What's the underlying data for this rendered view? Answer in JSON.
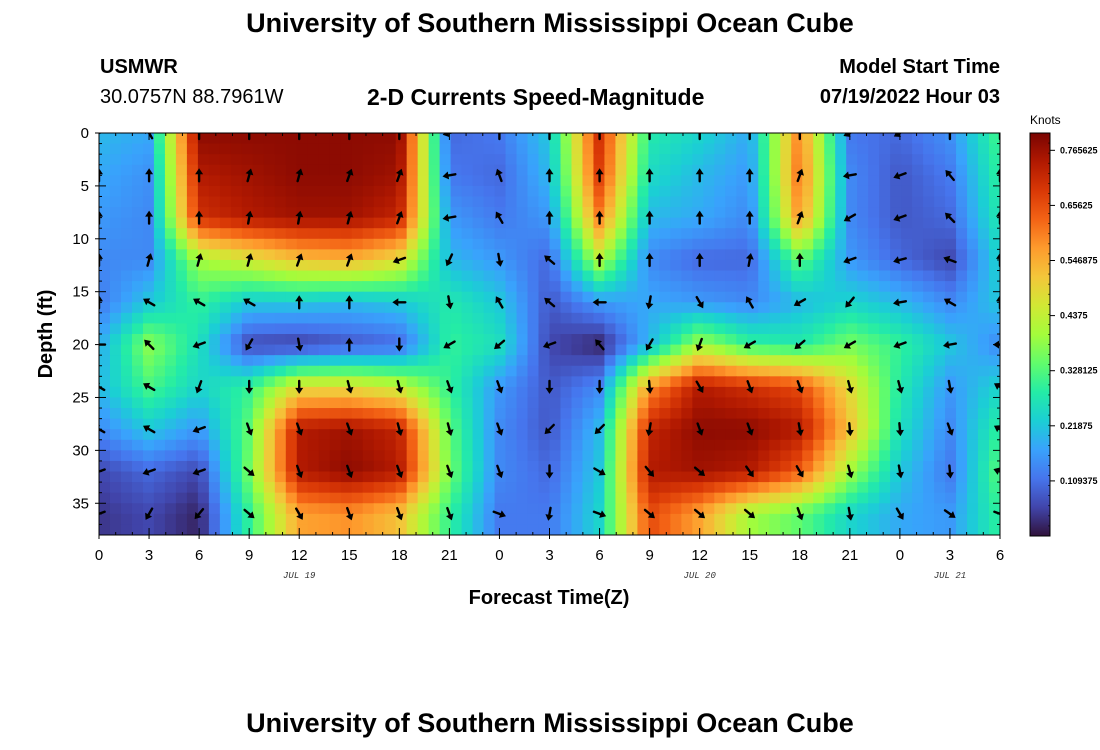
{
  "header": {
    "title": "University of Southern Mississippi Ocean Cube",
    "station": "USMWR",
    "coordinates": "30.0757N  88.7961W",
    "subtitle": "2-D Currents Speed-Magnitude",
    "model_start_label": "Model Start Time",
    "model_start_value": "07/19/2022 Hour 03"
  },
  "footer": {
    "title": "University of Southern Mississippi Ocean Cube"
  },
  "chart_data": {
    "type": "heatmap",
    "xlabel": "Forecast Time(Z)",
    "ylabel": "Depth (ft)",
    "x_tick_labels": [
      "0",
      "3",
      "6",
      "9",
      "12",
      "15",
      "18",
      "21",
      "0",
      "3",
      "6",
      "9",
      "12",
      "15",
      "18",
      "21",
      "0",
      "3",
      "6"
    ],
    "x_range_hours": [
      0,
      54
    ],
    "date_labels": [
      {
        "text": "JUL 19",
        "hour": 12
      },
      {
        "text": "JUL 20",
        "hour": 36
      },
      {
        "text": "JUL 21",
        "hour": 51
      }
    ],
    "y_ticks": [
      0,
      5,
      10,
      15,
      20,
      25,
      30,
      35
    ],
    "y_range": [
      0,
      38
    ],
    "colorbar": {
      "units": "Knots",
      "min": 0,
      "max": 0.8,
      "tick_labels": [
        "0.765625",
        "0.65625",
        "0.546875",
        "0.4375",
        "0.328125",
        "0.21875",
        "0.109375"
      ],
      "tick_values": [
        0.765625,
        0.65625,
        0.546875,
        0.4375,
        0.328125,
        0.21875,
        0.109375
      ],
      "colormap": [
        "#30123b",
        "#4145ab",
        "#4675ed",
        "#39a2fc",
        "#1bcfd4",
        "#24eca6",
        "#61fc6c",
        "#a4fc3b",
        "#d1e834",
        "#f3c63a",
        "#fe9b2d",
        "#f36315",
        "#d93806",
        "#b11901",
        "#7a0402"
      ]
    },
    "speed_field": {
      "x_hours": [
        0,
        3,
        6,
        9,
        12,
        15,
        18,
        21,
        24,
        27,
        30,
        33,
        36,
        39,
        42,
        45,
        48,
        51,
        54
      ],
      "depths": [
        0,
        4,
        8,
        12,
        16,
        20,
        24,
        28,
        32,
        36
      ],
      "values": [
        [
          0.2,
          0.18,
          0.78,
          0.78,
          0.78,
          0.78,
          0.78,
          0.1,
          0.12,
          0.22,
          0.7,
          0.28,
          0.24,
          0.18,
          0.6,
          0.12,
          0.1,
          0.15,
          0.32
        ],
        [
          0.18,
          0.15,
          0.74,
          0.76,
          0.78,
          0.78,
          0.76,
          0.12,
          0.1,
          0.2,
          0.68,
          0.25,
          0.2,
          0.16,
          0.62,
          0.14,
          0.08,
          0.12,
          0.3
        ],
        [
          0.16,
          0.14,
          0.7,
          0.74,
          0.76,
          0.76,
          0.72,
          0.16,
          0.12,
          0.16,
          0.6,
          0.2,
          0.18,
          0.14,
          0.58,
          0.14,
          0.08,
          0.1,
          0.28
        ],
        [
          0.14,
          0.14,
          0.4,
          0.46,
          0.52,
          0.54,
          0.48,
          0.2,
          0.16,
          0.1,
          0.42,
          0.14,
          0.1,
          0.1,
          0.34,
          0.16,
          0.1,
          0.06,
          0.24
        ],
        [
          0.12,
          0.22,
          0.3,
          0.22,
          0.22,
          0.2,
          0.22,
          0.28,
          0.22,
          0.08,
          0.16,
          0.18,
          0.16,
          0.14,
          0.2,
          0.24,
          0.2,
          0.14,
          0.22
        ],
        [
          0.18,
          0.38,
          0.26,
          0.06,
          0.05,
          0.08,
          0.1,
          0.3,
          0.26,
          0.06,
          0.02,
          0.2,
          0.4,
          0.3,
          0.28,
          0.36,
          0.3,
          0.22,
          0.14
        ],
        [
          0.2,
          0.32,
          0.24,
          0.3,
          0.48,
          0.48,
          0.44,
          0.3,
          0.16,
          0.08,
          0.14,
          0.58,
          0.74,
          0.7,
          0.66,
          0.48,
          0.28,
          0.16,
          0.24
        ],
        [
          0.14,
          0.22,
          0.16,
          0.34,
          0.74,
          0.76,
          0.72,
          0.34,
          0.14,
          0.08,
          0.2,
          0.72,
          0.78,
          0.78,
          0.74,
          0.52,
          0.26,
          0.14,
          0.3
        ],
        [
          0.06,
          0.1,
          0.06,
          0.36,
          0.74,
          0.78,
          0.74,
          0.36,
          0.14,
          0.1,
          0.22,
          0.74,
          0.76,
          0.74,
          0.64,
          0.4,
          0.22,
          0.12,
          0.34
        ],
        [
          0.04,
          0.06,
          0.02,
          0.3,
          0.56,
          0.58,
          0.52,
          0.3,
          0.12,
          0.12,
          0.24,
          0.66,
          0.56,
          0.4,
          0.34,
          0.24,
          0.18,
          0.16,
          0.3
        ]
      ]
    },
    "vector_field": {
      "x_hours": [
        0,
        3,
        6,
        9,
        12,
        15,
        18,
        21,
        24,
        27,
        30,
        33,
        36,
        39,
        42,
        45,
        48,
        51,
        54
      ],
      "depths": [
        0,
        4,
        8,
        12,
        16,
        20,
        24,
        28,
        32,
        36
      ],
      "directions_deg": [
        [
          250,
          330,
          0,
          0,
          0,
          0,
          0,
          255,
          0,
          0,
          0,
          0,
          0,
          0,
          0,
          245,
          240,
          0,
          0
        ],
        [
          0,
          0,
          0,
          15,
          15,
          20,
          20,
          260,
          340,
          0,
          0,
          0,
          0,
          0,
          20,
          260,
          250,
          320,
          0
        ],
        [
          0,
          0,
          0,
          10,
          10,
          15,
          20,
          260,
          330,
          0,
          0,
          0,
          0,
          0,
          20,
          240,
          250,
          315,
          0
        ],
        [
          0,
          15,
          15,
          15,
          20,
          20,
          250,
          205,
          170,
          310,
          0,
          0,
          0,
          10,
          0,
          250,
          255,
          290,
          0
        ],
        [
          0,
          300,
          300,
          300,
          0,
          0,
          270,
          170,
          330,
          310,
          270,
          190,
          150,
          330,
          240,
          220,
          260,
          300,
          0
        ],
        [
          270,
          315,
          250,
          210,
          170,
          0,
          180,
          240,
          230,
          250,
          320,
          210,
          200,
          240,
          230,
          240,
          250,
          260,
          270
        ],
        [
          300,
          300,
          200,
          180,
          180,
          165,
          165,
          160,
          160,
          180,
          180,
          175,
          150,
          160,
          160,
          165,
          165,
          170,
          300
        ],
        [
          300,
          300,
          250,
          160,
          160,
          160,
          165,
          165,
          160,
          225,
          225,
          190,
          160,
          160,
          170,
          175,
          175,
          160,
          300
        ],
        [
          250,
          250,
          250,
          130,
          160,
          160,
          160,
          160,
          160,
          180,
          120,
          140,
          130,
          145,
          150,
          165,
          170,
          175,
          290
        ],
        [
          250,
          210,
          220,
          130,
          150,
          160,
          160,
          160,
          110,
          190,
          110,
          130,
          130,
          130,
          160,
          170,
          150,
          125,
          110
        ]
      ]
    }
  }
}
